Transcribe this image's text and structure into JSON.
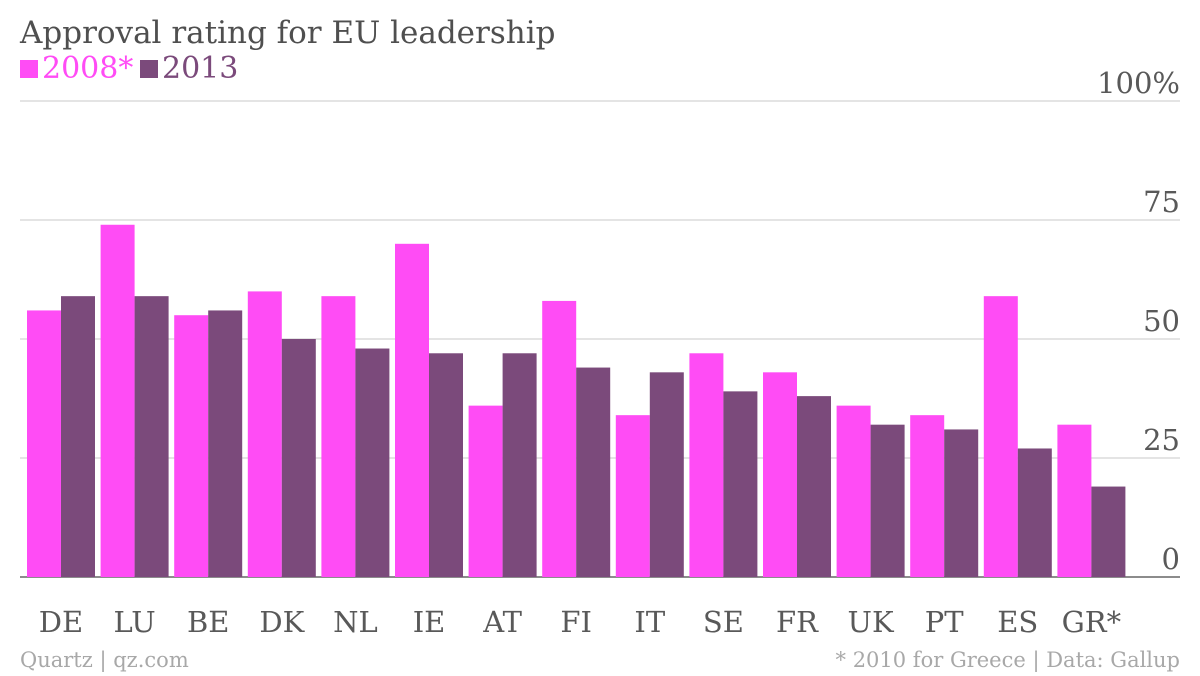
{
  "chart_data": {
    "type": "bar",
    "title": "Approval rating for EU leadership",
    "categories": [
      "DE",
      "LU",
      "BE",
      "DK",
      "NL",
      "IE",
      "AT",
      "FI",
      "IT",
      "SE",
      "FR",
      "UK",
      "PT",
      "ES",
      "GR*"
    ],
    "series": [
      {
        "name": "2008*",
        "color": "#ff4cf5",
        "values": [
          56,
          74,
          55,
          60,
          59,
          70,
          36,
          58,
          34,
          47,
          43,
          36,
          34,
          59,
          32
        ]
      },
      {
        "name": "2013",
        "color": "#7b4a7b",
        "values": [
          59,
          59,
          56,
          50,
          48,
          47,
          47,
          44,
          43,
          39,
          38,
          32,
          31,
          27,
          19
        ]
      }
    ],
    "ylim": [
      0,
      100
    ],
    "yticks": [
      0,
      25,
      50,
      75,
      100
    ],
    "ytick_labels": [
      "0",
      "25",
      "50",
      "75",
      "100%"
    ],
    "grid": true,
    "legend_position": "top-left",
    "footer_left": "Quartz | qz.com",
    "footer_right": "* 2010 for Greece | Data: Gallup"
  }
}
